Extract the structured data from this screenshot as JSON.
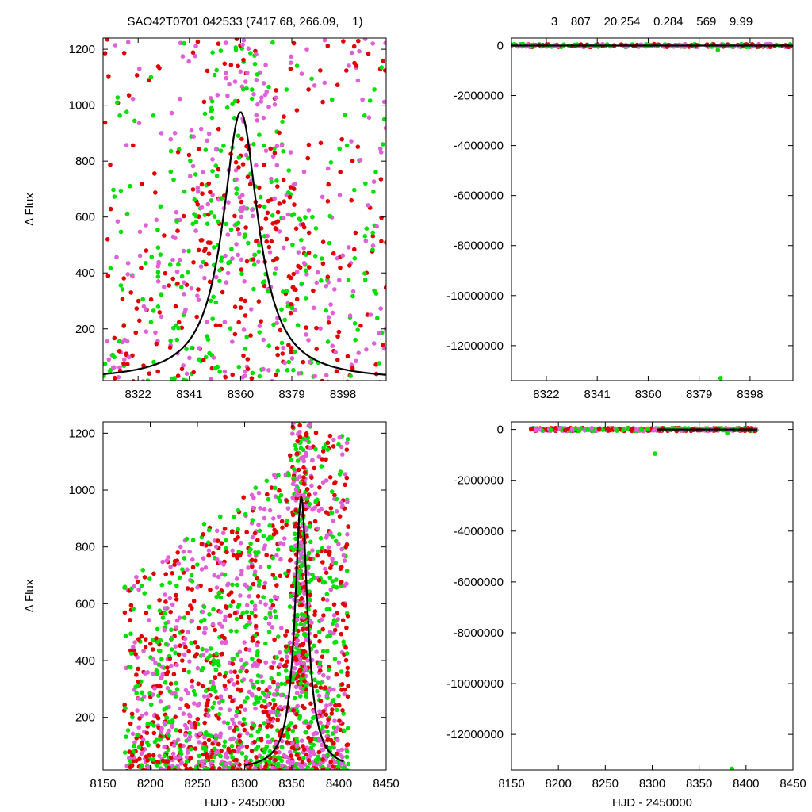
{
  "header": {
    "left_title": "SAO42T0701.042533 (7417.68, 266.09,    1)",
    "right_title": "3    807    20.254    0.284    569    9.99"
  },
  "colors": {
    "red": "#e00000",
    "magenta": "#e060d8",
    "green": "#00e000",
    "model": "#000000"
  },
  "chart_data": [
    {
      "id": "top-left",
      "type": "scatter",
      "ylabel": "Δ Flux",
      "xlabel": "",
      "xlim": [
        8309,
        8414
      ],
      "ylim": [
        15,
        1240
      ],
      "xticks": [
        8322,
        8341,
        8360,
        8379,
        8398
      ],
      "yticks": [
        200,
        400,
        600,
        800,
        1000,
        1200
      ],
      "scatter": {
        "count": 900,
        "seed": 11,
        "distribution": "peak",
        "center": 8360,
        "width": 16
      },
      "model": {
        "center": 8360,
        "amplitude": 960,
        "fwhm": 16,
        "baseline": 15,
        "x_from": 8309,
        "x_to": 8414
      }
    },
    {
      "id": "top-right",
      "type": "scatter",
      "ylabel": "",
      "xlabel": "",
      "xlim": [
        8309,
        8414
      ],
      "ylim": [
        -13400000,
        300000
      ],
      "xticks": [
        8322,
        8341,
        8360,
        8379,
        8398
      ],
      "yticks": [
        0,
        -2000000,
        -4000000,
        -6000000,
        -8000000,
        -10000000,
        -12000000
      ],
      "scatter": {
        "count": 260,
        "seed": 23,
        "distribution": "flat",
        "center": 8360,
        "width": 16
      },
      "outliers": [
        {
          "x": 8387,
          "y": -13300000,
          "series": "green"
        },
        {
          "x": 8386,
          "y": -180000,
          "series": "green"
        }
      ],
      "model": {
        "center": 8360,
        "amplitude": 960,
        "fwhm": 16,
        "baseline": 15,
        "x_from": 8309,
        "x_to": 8414
      }
    },
    {
      "id": "bottom-left",
      "type": "scatter",
      "ylabel": "Δ Flux",
      "xlabel": "HJD - 2450000",
      "xlim": [
        8150,
        8450
      ],
      "ylim": [
        15,
        1240
      ],
      "xticks": [
        8150,
        8200,
        8250,
        8300,
        8350,
        8400,
        8450
      ],
      "yticks": [
        200,
        400,
        600,
        800,
        1000,
        1200
      ],
      "scatter": {
        "count": 2400,
        "seed": 37,
        "distribution": "wide",
        "center": 8360,
        "width": 16,
        "x_min": 8172,
        "x_max": 8410
      },
      "model": {
        "center": 8360,
        "amplitude": 960,
        "fwhm": 16,
        "baseline": 15,
        "x_from": 8300,
        "x_to": 8405
      }
    },
    {
      "id": "bottom-right",
      "type": "scatter",
      "ylabel": "",
      "xlabel": "HJD - 2450000",
      "xlim": [
        8150,
        8450
      ],
      "ylim": [
        -13400000,
        300000
      ],
      "xticks": [
        8150,
        8200,
        8250,
        8300,
        8350,
        8400,
        8450
      ],
      "yticks": [
        0,
        -2000000,
        -4000000,
        -6000000,
        -8000000,
        -10000000,
        -12000000
      ],
      "scatter": {
        "count": 400,
        "seed": 51,
        "distribution": "flat",
        "center": 8360,
        "width": 16,
        "x_min": 8170,
        "x_max": 8412
      },
      "outliers": [
        {
          "x": 8303,
          "y": -950000,
          "series": "green"
        },
        {
          "x": 8385,
          "y": -13350000,
          "series": "green"
        },
        {
          "x": 8380,
          "y": -150000,
          "series": "green"
        }
      ],
      "model": {
        "center": 8360,
        "amplitude": 960,
        "fwhm": 16,
        "baseline": 15,
        "x_from": 8305,
        "x_to": 8412
      }
    }
  ]
}
